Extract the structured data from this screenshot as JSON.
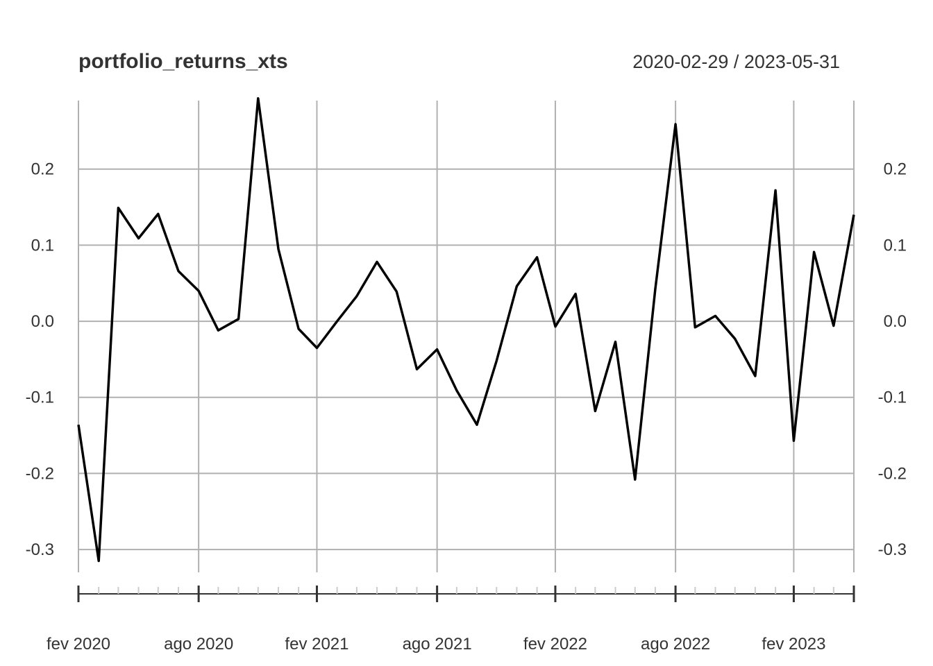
{
  "chart_data": {
    "type": "line",
    "title": "portfolio_returns_xts",
    "date_range": "2020-02-29 / 2023-05-31",
    "ylim": [
      -0.33,
      0.29
    ],
    "y_ticks": [
      -0.3,
      -0.2,
      -0.1,
      0.0,
      0.1,
      0.2
    ],
    "y_tick_labels": [
      "-0.3",
      "-0.2",
      "-0.1",
      "0.0",
      "0.1",
      "0.2"
    ],
    "x_major_ticks": [
      {
        "date": "2020-02-29",
        "label": "fev 2020"
      },
      {
        "date": "2020-08-31",
        "label": "ago 2020"
      },
      {
        "date": "2021-02-28",
        "label": "fev 2021"
      },
      {
        "date": "2021-08-31",
        "label": "ago 2021"
      },
      {
        "date": "2022-02-28",
        "label": "fev 2022"
      },
      {
        "date": "2022-08-31",
        "label": "ago 2022"
      },
      {
        "date": "2023-02-28",
        "label": "fev 2023"
      },
      {
        "date": "2023-05-31",
        "label": ""
      }
    ],
    "grid": true,
    "series": [
      {
        "color": "#000000",
        "x": [
          "2020-02-29",
          "2020-03-31",
          "2020-04-30",
          "2020-05-31",
          "2020-06-30",
          "2020-07-31",
          "2020-08-31",
          "2020-09-30",
          "2020-10-31",
          "2020-11-30",
          "2020-12-31",
          "2021-01-31",
          "2021-02-28",
          "2021-03-31",
          "2021-04-30",
          "2021-05-31",
          "2021-06-30",
          "2021-07-31",
          "2021-08-31",
          "2021-09-30",
          "2021-10-31",
          "2021-11-30",
          "2021-12-31",
          "2022-01-31",
          "2022-02-28",
          "2022-03-31",
          "2022-04-30",
          "2022-05-31",
          "2022-06-30",
          "2022-07-31",
          "2022-08-31",
          "2022-09-30",
          "2022-10-31",
          "2022-11-30",
          "2022-12-31",
          "2023-01-31",
          "2023-02-28",
          "2023-03-31",
          "2023-04-30",
          "2023-05-31"
        ],
        "values": [
          -0.136,
          -0.315,
          0.149,
          0.109,
          0.141,
          0.066,
          0.04,
          -0.012,
          0.003,
          0.293,
          0.095,
          -0.01,
          -0.035,
          0.0,
          0.033,
          0.078,
          0.039,
          -0.063,
          -0.037,
          -0.091,
          -0.136,
          -0.052,
          0.046,
          0.084,
          -0.007,
          0.036,
          -0.118,
          -0.027,
          -0.208,
          0.042,
          0.259,
          -0.008,
          0.007,
          -0.023,
          -0.072,
          0.172,
          -0.157,
          0.091,
          -0.006,
          0.14
        ]
      }
    ]
  }
}
